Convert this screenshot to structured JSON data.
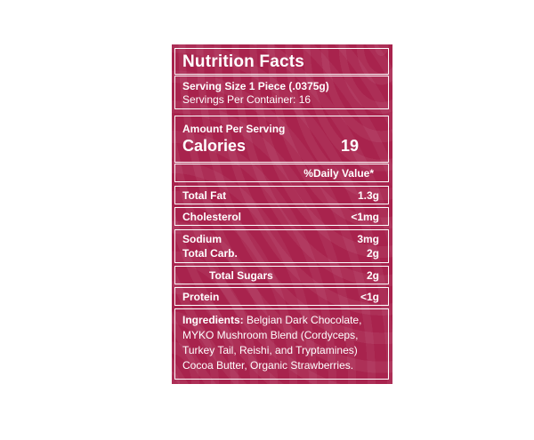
{
  "title": "Nutrition Facts",
  "serving_size": "Serving Size 1 Piece (.0375g)",
  "servings_per_container": "Servings Per Container: 16",
  "amount_per_serving": "Amount Per Serving",
  "calories_label": "Calories",
  "calories_value": "19",
  "daily_value_header": "%Daily Value*",
  "nutrients": [
    {
      "name": "Total Fat",
      "value": "1.3g"
    },
    {
      "name": "Cholesterol",
      "value": "<1mg"
    },
    {
      "name": "Sodium",
      "value": "3mg"
    },
    {
      "name": "Total Carb.",
      "value": "2g"
    },
    {
      "name": "Total Sugars",
      "value": "2g"
    },
    {
      "name": "Protein",
      "value": "<1g"
    }
  ],
  "ingredients": {
    "label": "Ingredients:",
    "lines": [
      " Belgian Dark Chocolate,",
      "MYKO Mushroom Blend (Cordyceps,",
      "Turkey Tail, Reishi, and Tryptamines)",
      "Cocoa Butter, Organic Strawberries."
    ]
  },
  "colors": {
    "panel": "#a8234d",
    "text": "#ffffff"
  }
}
